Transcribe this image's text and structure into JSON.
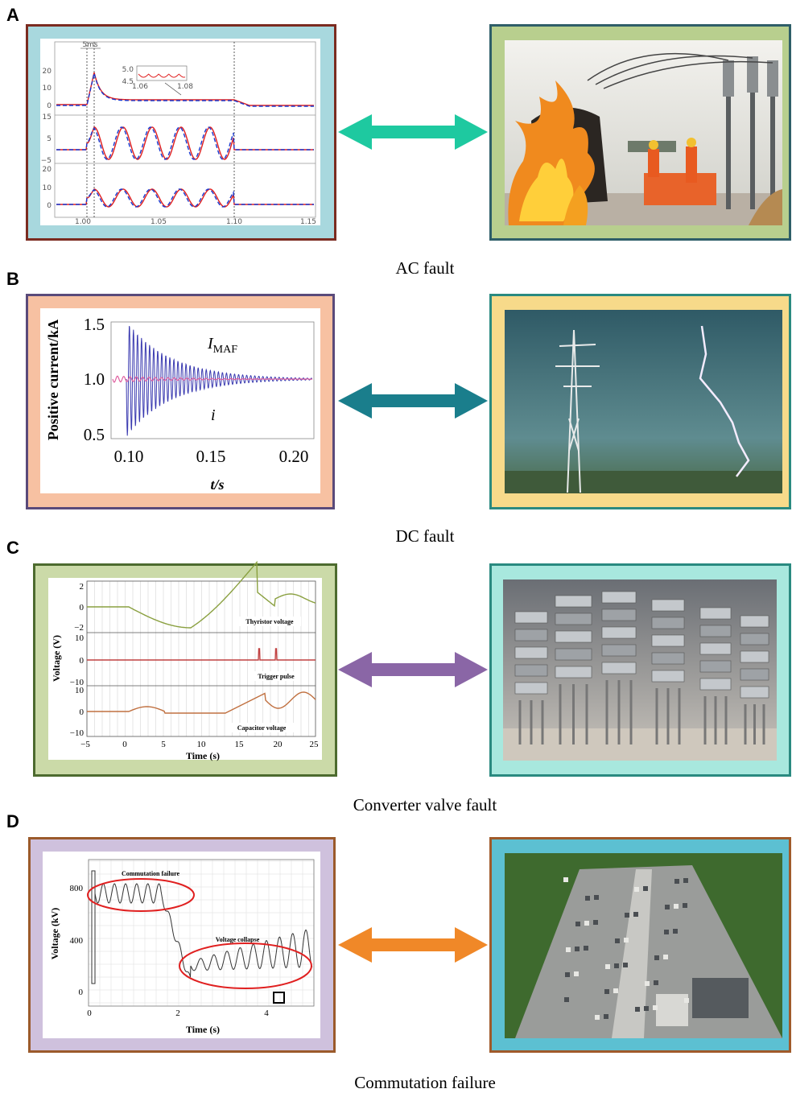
{
  "figure": {
    "panels": [
      {
        "label": "A",
        "caption": "AC fault",
        "plot": {
          "annotation": "5ms",
          "inset_yticks": [
            "5.0",
            "4.5"
          ],
          "inset_xticks": [
            "1.06",
            "1.08"
          ],
          "yticks": [
            [
              "20",
              "10",
              "0"
            ],
            [
              "15",
              "5",
              "−5"
            ],
            [
              "20",
              "10",
              "0"
            ]
          ],
          "xticks": [
            "1.00",
            "1.05",
            "1.10",
            "1.15"
          ]
        }
      },
      {
        "label": "B",
        "caption": "DC fault",
        "plot": {
          "y_label": "Positive current/kA",
          "x_label": "t/s",
          "yticks": [
            "1.5",
            "1.0",
            "0.5"
          ],
          "xticks": [
            "0.10",
            "0.15",
            "0.20"
          ],
          "annotation_envelope": {
            "symbol": "I",
            "subscript": "MAF"
          },
          "annotation_current": "i"
        }
      },
      {
        "label": "C",
        "caption": "Converter valve fault",
        "plot": {
          "y_label": "Voltage (V)",
          "x_label": "Time (s)",
          "yticks": [
            [
              "2",
              "0",
              "−2"
            ],
            [
              "10",
              "0",
              "−10"
            ],
            [
              "10",
              "0",
              "−10"
            ]
          ],
          "xticks": [
            "−5",
            "0",
            "5",
            "10",
            "15",
            "20",
            "25"
          ],
          "trace_labels": [
            "Thyristor voltage",
            "Trigger pulse",
            "Capacitor voltage"
          ]
        }
      },
      {
        "label": "D",
        "caption": "Commutation failure",
        "plot": {
          "y_label": "Voltage (kV)",
          "x_label": "Time (s)",
          "yticks": [
            "800",
            "400",
            "0"
          ],
          "xticks": [
            "0",
            "2",
            "4"
          ],
          "annotations": [
            "Commutation failure",
            "Voltage collapse"
          ]
        }
      }
    ]
  }
}
